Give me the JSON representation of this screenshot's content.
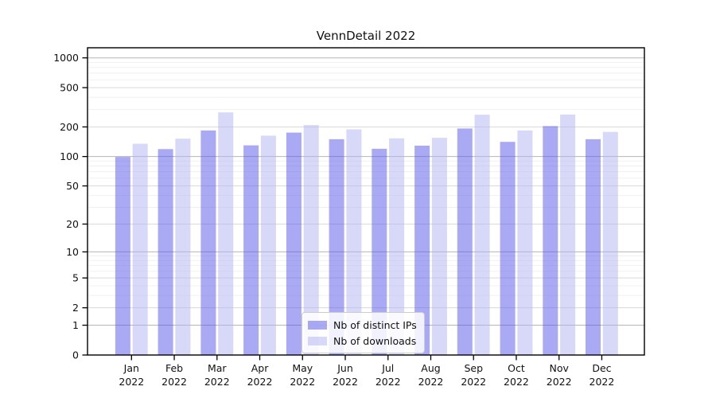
{
  "chart_data": {
    "type": "bar",
    "title": "VennDetail 2022",
    "xlabel": "",
    "ylabel": "",
    "year_label": "2022",
    "categories": [
      "Jan",
      "Feb",
      "Mar",
      "Apr",
      "May",
      "Jun",
      "Jul",
      "Aug",
      "Sep",
      "Oct",
      "Nov",
      "Dec"
    ],
    "series": [
      {
        "name": "Nb of distinct IPs",
        "fill": "rgba(85,85,233,0.5)",
        "hex_on_white": "#aaaaf4",
        "values": [
          99,
          119,
          184,
          130,
          175,
          150,
          120,
          129,
          193,
          141,
          204,
          150
        ]
      },
      {
        "name": "Nb of downloads",
        "fill": "rgba(177,177,241,0.5)",
        "hex_on_white": "#d8d8f8",
        "values": [
          135,
          152,
          281,
          163,
          209,
          189,
          153,
          155,
          266,
          184,
          267,
          178
        ]
      }
    ],
    "yticks": [
      0,
      1,
      2,
      5,
      10,
      20,
      50,
      100,
      200,
      500,
      1000
    ],
    "scale": "log1p",
    "ylim": [
      0,
      1267
    ],
    "grid": true,
    "grid_major_color": "#b6b6b6",
    "grid_medium_color": "#dadada",
    "grid_minor_color": "#ededed",
    "axis_color": "#000000",
    "legend_position": "lower-center"
  }
}
